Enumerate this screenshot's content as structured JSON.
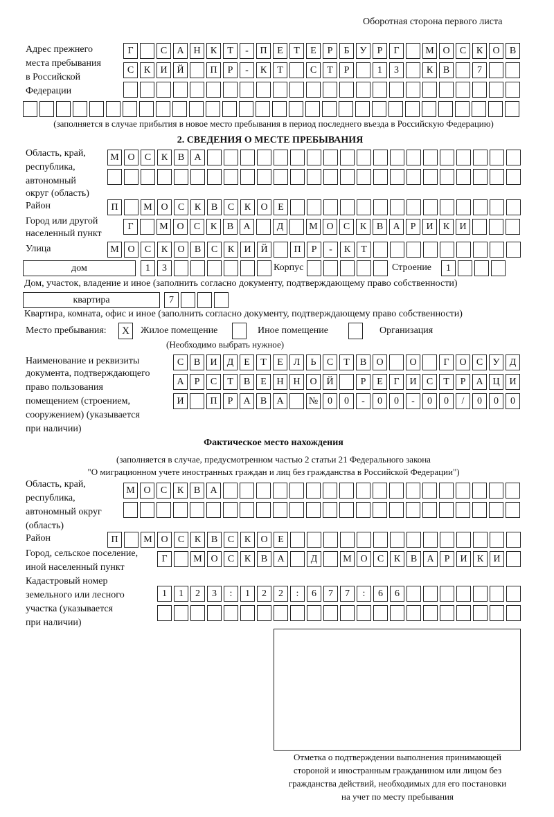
{
  "page_header": "Оборотная сторона первого листа",
  "prev_address": {
    "label": [
      "Адрес прежнего",
      "места пребывания",
      "в Российской",
      "Федерации"
    ],
    "rows": [
      [
        "Г",
        "",
        "С",
        "А",
        "Н",
        "К",
        "Т",
        "-",
        "П",
        "Е",
        "Т",
        "Е",
        "Р",
        "Б",
        "У",
        "Р",
        "Г",
        "",
        "М",
        "О",
        "С",
        "К",
        "О",
        "В"
      ],
      [
        "С",
        "К",
        "И",
        "Й",
        "",
        "П",
        "Р",
        "-",
        "К",
        "Т",
        "",
        "С",
        "Т",
        "Р",
        "",
        "1",
        "3",
        "",
        "К",
        "В",
        "",
        "7"
      ],
      [],
      []
    ],
    "note": "(заполняется в случае прибытия в новое место пребывания в период последнего въезда в Российскую Федерацию)"
  },
  "section2": {
    "heading": "2. СВЕДЕНИЯ О МЕСТЕ ПРЕБЫВАНИЯ",
    "region_label": [
      "Область, край,",
      "республика,",
      "автономный",
      "округ (область)"
    ],
    "region_rows": [
      [
        "М",
        "О",
        "С",
        "К",
        "В",
        "А"
      ],
      []
    ],
    "district_label": "Район",
    "district": [
      "П",
      "",
      "М",
      "О",
      "С",
      "К",
      "В",
      "С",
      "К",
      "О",
      "Е"
    ],
    "city_label": [
      "Город или другой",
      "населенный пункт"
    ],
    "city": [
      "Г",
      "",
      "М",
      "О",
      "С",
      "К",
      "В",
      "А",
      "",
      "Д",
      "",
      "М",
      "О",
      "С",
      "К",
      "В",
      "А",
      "Р",
      "И",
      "К",
      "И"
    ],
    "street_label": "Улица",
    "street": [
      "М",
      "О",
      "С",
      "К",
      "О",
      "В",
      "С",
      "К",
      "И",
      "Й",
      "",
      "П",
      "Р",
      "-",
      "К",
      "Т"
    ],
    "house_type": "дом",
    "house": [
      "1",
      "3"
    ],
    "korpus_label": "Корпус",
    "korpus": [],
    "stroenie_label": "Строение",
    "stroenie": [
      "1"
    ],
    "house_note": "Дом, участок, владение и иное (заполнить согласно документу, подтверждающему право собственности)",
    "flat_type": "квартира",
    "flat": [
      "7"
    ],
    "flat_note": "Квартира, комната, офис и иное (заполнить согласно документу, подтверждающему право собственности)",
    "stay_label": "Место пребывания:",
    "stay_options": [
      {
        "label": "Жилое помещение",
        "mark": "X",
        "checked": true
      },
      {
        "label": "Иное помещение",
        "mark": "",
        "checked": false
      },
      {
        "label": "Организация",
        "mark": "",
        "checked": false
      }
    ],
    "stay_note": "(Необходимо выбрать нужное)",
    "doc_label": [
      "Наименование и реквизиты",
      "документа, подтверждающего",
      "право пользования",
      "помещением (строением,",
      "сооружением) (указывается",
      "при наличии)"
    ],
    "doc_rows": [
      [
        "С",
        "В",
        "И",
        "Д",
        "Е",
        "Т",
        "Е",
        "Л",
        "Ь",
        "С",
        "Т",
        "В",
        "О",
        "",
        "О",
        "",
        "Г",
        "О",
        "С",
        "У",
        "Д"
      ],
      [
        "А",
        "Р",
        "С",
        "Т",
        "В",
        "Е",
        "Н",
        "Н",
        "О",
        "Й",
        "",
        "Р",
        "Е",
        "Г",
        "И",
        "С",
        "Т",
        "Р",
        "А",
        "Ц",
        "И"
      ],
      [
        "И",
        "",
        "П",
        "Р",
        "А",
        "В",
        "А",
        "",
        "№",
        "0",
        "0",
        "-",
        "0",
        "0",
        "-",
        "0",
        "0",
        "/",
        "0",
        "0",
        "0"
      ]
    ]
  },
  "actual": {
    "heading": "Фактическое место нахождения",
    "note": [
      "(заполняется в случае, предусмотренном частью 2 статьи 21 Федерального закона",
      "\"О миграционном учете иностранных граждан и лиц без гражданства в Российской Федерации\")"
    ],
    "region_label": [
      "Область, край,",
      "республика,",
      "автономный округ",
      "(область)"
    ],
    "region_rows": [
      [
        "М",
        "О",
        "С",
        "К",
        "В",
        "А"
      ],
      []
    ],
    "district_label": "Район",
    "district": [
      "П",
      "",
      "М",
      "О",
      "С",
      "К",
      "В",
      "С",
      "К",
      "О",
      "Е"
    ],
    "city_label": [
      "Город, сельское поселение,",
      "иной населенный пункт"
    ],
    "city": [
      "Г",
      "",
      "М",
      "О",
      "С",
      "К",
      "В",
      "А",
      "",
      "Д",
      "",
      "М",
      "О",
      "С",
      "К",
      "В",
      "А",
      "Р",
      "И",
      "К",
      "И"
    ],
    "cadastre_label": [
      "Кадастровый номер",
      "земельного или лесного",
      "участка (указывается",
      "при наличии)"
    ],
    "cadastre_rows": [
      [
        "1",
        "1",
        "2",
        "3",
        ":",
        "1",
        "2",
        "2",
        ":",
        "6",
        "7",
        "7",
        ":",
        "6",
        "6"
      ],
      []
    ]
  },
  "stamp_caption": [
    "Отметка о подтверждении выполнения принимающей",
    "стороной и иностранным гражданином или лицом без",
    "гражданства действий, необходимых для его постановки",
    "на учет по месту пребывания"
  ]
}
